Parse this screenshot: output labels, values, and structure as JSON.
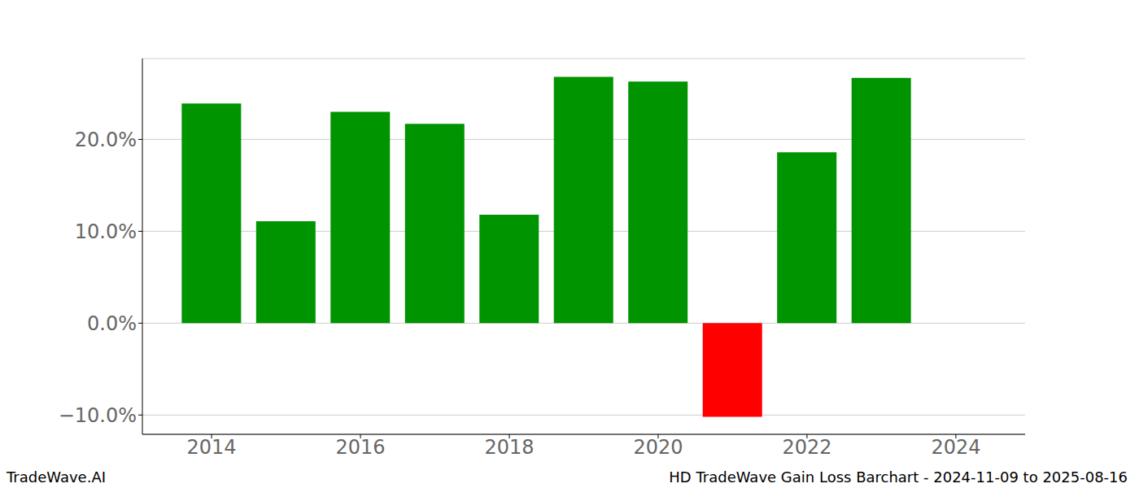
{
  "chart_data": {
    "type": "bar",
    "title": "HD TradeWave Gain Loss Barchart - 2024-11-09 to 2025-08-16",
    "annotations": [
      "TradeWave.AI"
    ],
    "x": [
      2014,
      2015,
      2016,
      2017,
      2018,
      2019,
      2020,
      2021,
      2022,
      2023
    ],
    "values": [
      23.9,
      11.1,
      23.0,
      21.7,
      11.8,
      26.8,
      26.3,
      -10.2,
      18.6,
      26.7
    ],
    "colors": [
      "#009400",
      "#009400",
      "#009400",
      "#009400",
      "#009400",
      "#009400",
      "#009400",
      "#ff0000",
      "#009400",
      "#009400"
    ],
    "xlim": [
      2013.07,
      2024.93
    ],
    "xticks": [
      2014,
      2016,
      2018,
      2020,
      2022,
      2024
    ],
    "ylim": [
      -12.1,
      28.8
    ],
    "yticks": [
      {
        "value": -10,
        "label": "−10.0%"
      },
      {
        "value": 0,
        "label": "0.0%"
      },
      {
        "value": 10,
        "label": "10.0%"
      },
      {
        "value": 20,
        "label": "20.0%"
      }
    ],
    "grid": true
  }
}
